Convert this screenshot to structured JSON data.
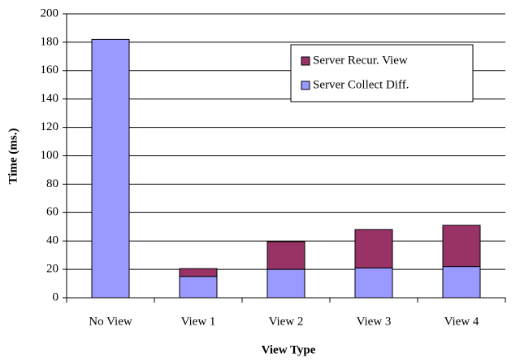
{
  "chart_data": {
    "type": "stacked_bar",
    "xlabel": "View Type",
    "ylabel": "Time (ms.)",
    "categories": [
      "No View",
      "View 1",
      "View 2",
      "View 3",
      "View 4"
    ],
    "series": [
      {
        "name": "Server Collect Diff.",
        "color": "#9999ff",
        "values": [
          182,
          15,
          20,
          21,
          22
        ]
      },
      {
        "name": "Server Recur. View",
        "color": "#993366",
        "values": [
          0,
          5.5,
          19.5,
          27,
          29
        ]
      }
    ],
    "ylim": [
      0,
      200
    ],
    "yticks": [
      0,
      20,
      40,
      60,
      80,
      100,
      120,
      140,
      160,
      180,
      200
    ],
    "grid": true,
    "legend": "upper right"
  }
}
